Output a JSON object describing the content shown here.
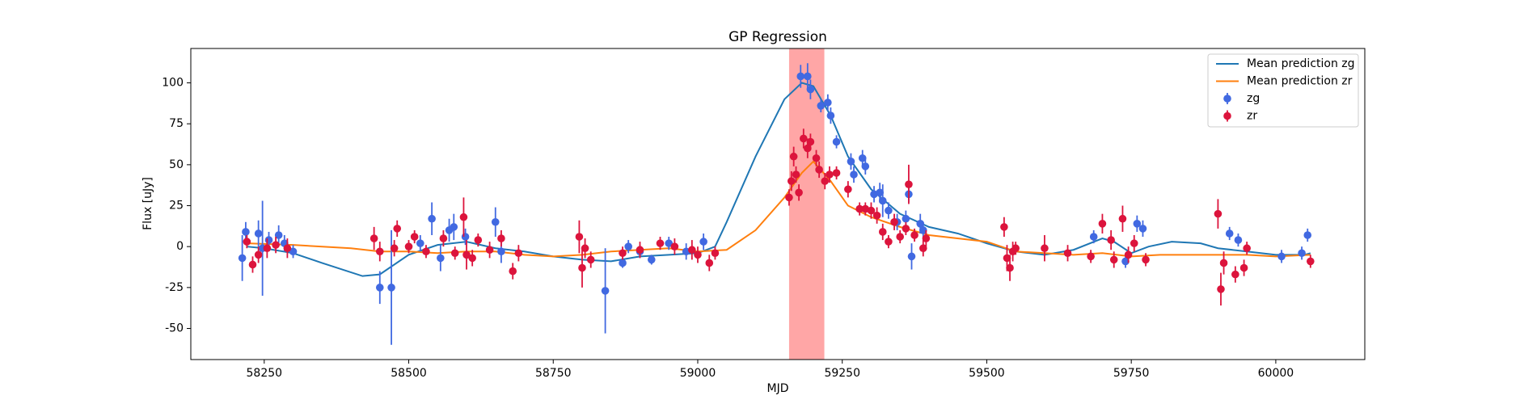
{
  "chart_data": {
    "type": "line",
    "title": "GP Regression",
    "x_label": "MJD",
    "y_label": "Flux [uJy]",
    "xlim": [
      58123,
      60154
    ],
    "ylim": [
      -69,
      121
    ],
    "xticks": [
      58250,
      58500,
      58750,
      59000,
      59250,
      59500,
      59750,
      60000
    ],
    "yticks": [
      -50,
      -25,
      0,
      25,
      50,
      75,
      100
    ],
    "legend": "upper right",
    "span": {
      "x": [
        59158,
        59219
      ],
      "color": "#ffa6a6"
    },
    "series": [
      {
        "name": "Mean prediction zg",
        "style": "line",
        "color": "#1f77b4",
        "x": [
          58220,
          58250,
          58300,
          58350,
          58420,
          58450,
          58500,
          58550,
          58600,
          58650,
          58700,
          58750,
          58800,
          58850,
          58900,
          58950,
          59000,
          59030,
          59050,
          59100,
          59150,
          59180,
          59200,
          59230,
          59260,
          59300,
          59350,
          59400,
          59450,
          59500,
          59550,
          59600,
          59650,
          59700,
          59720,
          59750,
          59780,
          59820,
          59870,
          59900,
          59950,
          60000,
          60050,
          60060
        ],
        "values": [
          0,
          -1,
          -4,
          -10,
          -18,
          -17,
          -5,
          1,
          3,
          -1,
          -3,
          -6,
          -8,
          -9,
          -6,
          -5,
          -4,
          0,
          15,
          55,
          90,
          100,
          98,
          80,
          55,
          35,
          20,
          12,
          8,
          2,
          -3,
          -5,
          -2,
          5,
          3,
          -4,
          0,
          3,
          2,
          -1,
          -3,
          -5,
          -5,
          -4
        ]
      },
      {
        "name": "Mean prediction zr",
        "style": "line",
        "color": "#ff7f0e",
        "x": [
          58220,
          58300,
          58400,
          58450,
          58500,
          58550,
          58600,
          58650,
          58700,
          58750,
          58800,
          58850,
          58900,
          58950,
          59000,
          59050,
          59100,
          59150,
          59180,
          59200,
          59230,
          59260,
          59300,
          59350,
          59400,
          59500,
          59550,
          59600,
          59650,
          59700,
          59750,
          59800,
          59850,
          59900,
          59950,
          60000,
          60060
        ],
        "values": [
          2,
          1,
          -1,
          -3,
          -3,
          -4,
          -3,
          -3,
          -5,
          -6,
          -5,
          -3,
          -2,
          -1,
          -3,
          -2,
          10,
          30,
          45,
          52,
          40,
          25,
          18,
          12,
          7,
          3,
          -3,
          -4,
          -5,
          -4,
          -6,
          -5,
          -5,
          -5,
          -5,
          -6,
          -5
        ]
      },
      {
        "name": "zg",
        "style": "errorbar",
        "color": "#4169e1",
        "x": [
          58212,
          58218,
          58240,
          58247,
          58258,
          58275,
          58285,
          58300,
          58450,
          58470,
          58520,
          58540,
          58555,
          58570,
          58578,
          58598,
          58650,
          58660,
          58840,
          58870,
          58880,
          58900,
          58920,
          58950,
          58980,
          59010,
          59178,
          59190,
          59195,
          59213,
          59225,
          59230,
          59240,
          59265,
          59270,
          59285,
          59290,
          59305,
          59315,
          59320,
          59330,
          59345,
          59360,
          59365,
          59370,
          59385,
          59390,
          59685,
          59740,
          59760,
          59770,
          59920,
          59935,
          60010,
          60045,
          60055
        ],
        "values": [
          -7,
          9,
          8,
          -1,
          4,
          7,
          2,
          -3,
          -25,
          -25,
          2,
          17,
          -7,
          10,
          12,
          6,
          15,
          -3,
          -27,
          -10,
          0,
          -3,
          -8,
          2,
          -3,
          3,
          104,
          104,
          96,
          86,
          88,
          80,
          64,
          52,
          44,
          54,
          49,
          32,
          33,
          28,
          22,
          15,
          17,
          32,
          -6,
          14,
          10,
          6,
          -9,
          14,
          11,
          8,
          4,
          -6,
          -4,
          7
        ],
        "errors": [
          14,
          6,
          8,
          29,
          5,
          6,
          5,
          4,
          10,
          35,
          5,
          10,
          8,
          7,
          8,
          5,
          9,
          7,
          26,
          3,
          4,
          4,
          3,
          4,
          5,
          5,
          7,
          8,
          6,
          4,
          5,
          5,
          4,
          5,
          5,
          5,
          5,
          5,
          6,
          10,
          5,
          5,
          5,
          5,
          8,
          6,
          5,
          4,
          4,
          5,
          5,
          4,
          4,
          4,
          4,
          4
        ]
      },
      {
        "name": "zr",
        "style": "errorbar",
        "color": "#dc143c",
        "x": [
          58220,
          58230,
          58240,
          58255,
          58270,
          58290,
          58440,
          58450,
          58475,
          58480,
          58500,
          58510,
          58530,
          58560,
          58580,
          58595,
          58600,
          58610,
          58620,
          58640,
          58660,
          58680,
          58690,
          58795,
          58800,
          58805,
          58815,
          58870,
          58900,
          58935,
          58960,
          58990,
          59000,
          59020,
          59030,
          59158,
          59162,
          59166,
          59170,
          59175,
          59183,
          59190,
          59195,
          59205,
          59210,
          59220,
          59228,
          59240,
          59260,
          59280,
          59290,
          59300,
          59310,
          59320,
          59330,
          59340,
          59350,
          59360,
          59365,
          59375,
          59390,
          59395,
          59530,
          59535,
          59540,
          59545,
          59550,
          59600,
          59640,
          59680,
          59700,
          59715,
          59720,
          59735,
          59745,
          59755,
          59775,
          59900,
          59905,
          59910,
          59930,
          59945,
          59950,
          60060
        ],
        "values": [
          3,
          -11,
          -5,
          -1,
          1,
          -1,
          5,
          -3,
          -1,
          11,
          0,
          6,
          -3,
          5,
          -4,
          18,
          -5,
          -7,
          4,
          -2,
          5,
          -15,
          -4,
          6,
          -13,
          -1,
          -8,
          -4,
          -2,
          2,
          0,
          -2,
          -5,
          -10,
          -4,
          30,
          40,
          55,
          44,
          33,
          66,
          60,
          64,
          54,
          47,
          40,
          44,
          45,
          35,
          23,
          23,
          22,
          19,
          9,
          3,
          15,
          6,
          11,
          38,
          7,
          -1,
          5,
          12,
          -7,
          -13,
          -3,
          -1,
          -1,
          -4,
          -6,
          14,
          4,
          -8,
          17,
          -5,
          2,
          -8,
          20,
          -26,
          -10,
          -17,
          -13,
          -1,
          -9
        ],
        "errors": [
          4,
          5,
          5,
          6,
          5,
          6,
          7,
          6,
          5,
          5,
          4,
          4,
          4,
          5,
          4,
          12,
          9,
          5,
          4,
          5,
          5,
          5,
          5,
          10,
          12,
          6,
          5,
          4,
          5,
          4,
          5,
          6,
          5,
          5,
          4,
          5,
          6,
          6,
          5,
          5,
          6,
          6,
          5,
          5,
          5,
          5,
          5,
          4,
          5,
          4,
          4,
          5,
          5,
          5,
          4,
          5,
          4,
          4,
          12,
          4,
          5,
          5,
          6,
          8,
          8,
          6,
          4,
          8,
          5,
          4,
          6,
          6,
          5,
          8,
          5,
          5,
          4,
          9,
          10,
          7,
          5,
          5,
          4,
          4
        ]
      }
    ]
  }
}
